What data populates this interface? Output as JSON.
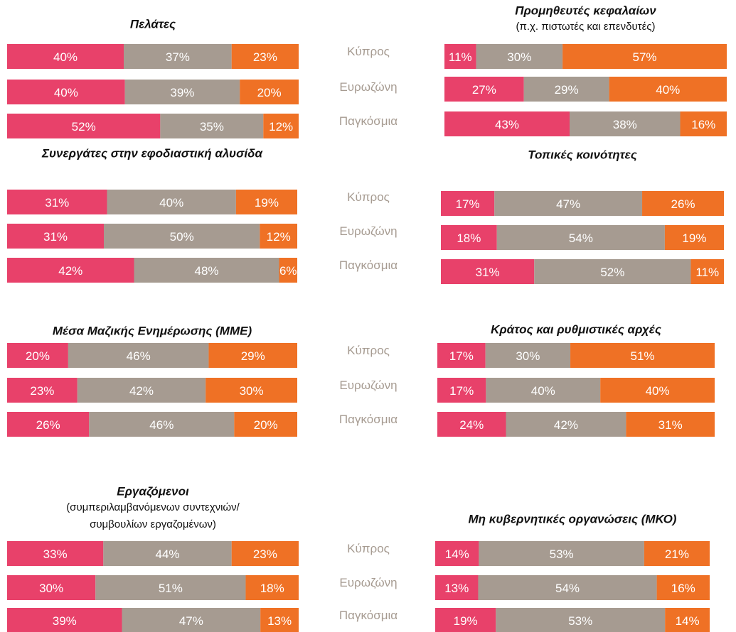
{
  "chart_data": [
    {
      "type": "stacked-bar",
      "title": "Πελάτες",
      "categories": [
        "Κύπρος",
        "Ευρωζώνη",
        "Παγκόσμια"
      ],
      "series": [
        {
          "color": "#e8416a",
          "values": [
            40,
            40,
            52
          ],
          "value_labels": [
            "40%",
            "40%",
            "52%"
          ]
        },
        {
          "color": "#a69b91",
          "values": [
            37,
            39,
            35
          ],
          "value_labels": [
            "37%",
            "39%",
            "35%"
          ]
        },
        {
          "color": "#ef7125",
          "values": [
            23,
            20,
            12
          ],
          "value_labels": [
            "23%",
            "20%",
            "12%"
          ]
        }
      ]
    },
    {
      "type": "stacked-bar",
      "title": "Προμηθευτές κεφαλαίων",
      "subtitle": [
        "(π.χ. πιστωτές και επενδυτές)"
      ],
      "series": [
        {
          "color": "#e8416a",
          "values": [
            11,
            27,
            43
          ],
          "value_labels": [
            "11%",
            "27%",
            "43%"
          ]
        },
        {
          "color": "#a69b91",
          "values": [
            30,
            29,
            38
          ],
          "value_labels": [
            "30%",
            "29%",
            "38%"
          ]
        },
        {
          "color": "#ef7125",
          "values": [
            57,
            40,
            16
          ],
          "value_labels": [
            "57%",
            "40%",
            "16%"
          ]
        }
      ]
    },
    {
      "type": "stacked-bar",
      "title": "Συνεργάτες στην εφοδιαστική αλυσίδα",
      "categories": [
        "Κύπρος",
        "Ευρωζώνη",
        "Παγκόσμια"
      ],
      "series": [
        {
          "color": "#e8416a",
          "values": [
            31,
            31,
            42
          ],
          "value_labels": [
            "31%",
            "31%",
            "42%"
          ]
        },
        {
          "color": "#a69b91",
          "values": [
            40,
            50,
            48
          ],
          "value_labels": [
            "40%",
            "50%",
            "48%"
          ]
        },
        {
          "color": "#ef7125",
          "values": [
            19,
            12,
            6
          ],
          "value_labels": [
            "19%",
            "12%",
            "6%"
          ]
        }
      ]
    },
    {
      "type": "stacked-bar",
      "title": "Τοπικές κοινότητες",
      "series": [
        {
          "color": "#e8416a",
          "values": [
            17,
            18,
            31
          ],
          "value_labels": [
            "17%",
            "18%",
            "31%"
          ]
        },
        {
          "color": "#a69b91",
          "values": [
            47,
            54,
            52
          ],
          "value_labels": [
            "47%",
            "54%",
            "52%"
          ]
        },
        {
          "color": "#ef7125",
          "values": [
            26,
            19,
            11
          ],
          "value_labels": [
            "26%",
            "19%",
            "11%"
          ]
        }
      ]
    },
    {
      "type": "stacked-bar",
      "title": "Μέσα Μαζικής Ενημέρωσης (ΜΜΕ)",
      "categories": [
        "Κύπρος",
        "Ευρωζώνη",
        "Παγκόσμια"
      ],
      "series": [
        {
          "color": "#e8416a",
          "values": [
            20,
            23,
            26
          ],
          "value_labels": [
            "20%",
            "23%",
            "26%"
          ]
        },
        {
          "color": "#a69b91",
          "values": [
            46,
            42,
            46
          ],
          "value_labels": [
            "46%",
            "42%",
            "46%"
          ]
        },
        {
          "color": "#ef7125",
          "values": [
            29,
            30,
            20
          ],
          "value_labels": [
            "29%",
            "30%",
            "20%"
          ]
        }
      ]
    },
    {
      "type": "stacked-bar",
      "title": "Κράτος και ρυθμιστικές αρχές",
      "series": [
        {
          "color": "#e8416a",
          "values": [
            17,
            17,
            24
          ],
          "value_labels": [
            "17%",
            "17%",
            "24%"
          ]
        },
        {
          "color": "#a69b91",
          "values": [
            30,
            40,
            42
          ],
          "value_labels": [
            "30%",
            "40%",
            "42%"
          ]
        },
        {
          "color": "#ef7125",
          "values": [
            51,
            40,
            31
          ],
          "value_labels": [
            "51%",
            "40%",
            "31%"
          ]
        }
      ]
    },
    {
      "type": "stacked-bar",
      "title": "Εργαζόμενοι",
      "subtitle": [
        "(συμπεριλαμβανόμενων συντεχνιών/",
        "συμβουλίων εργαζομένων)"
      ],
      "categories": [
        "Κύπρος",
        "Ευρωζώνη",
        "Παγκόσμια"
      ],
      "series": [
        {
          "color": "#e8416a",
          "values": [
            33,
            30,
            39
          ],
          "value_labels": [
            "33%",
            "30%",
            "39%"
          ]
        },
        {
          "color": "#a69b91",
          "values": [
            44,
            51,
            47
          ],
          "value_labels": [
            "44%",
            "51%",
            "47%"
          ]
        },
        {
          "color": "#ef7125",
          "values": [
            23,
            18,
            13
          ],
          "value_labels": [
            "23%",
            "18%",
            "13%"
          ]
        }
      ]
    },
    {
      "type": "stacked-bar",
      "title": "Μη κυβερνητικές οργανώσεις (ΜΚΟ)",
      "series": [
        {
          "color": "#e8416a",
          "values": [
            14,
            13,
            19
          ],
          "value_labels": [
            "14%",
            "13%",
            "19%"
          ]
        },
        {
          "color": "#a69b91",
          "values": [
            53,
            54,
            53
          ],
          "value_labels": [
            "53%",
            "54%",
            "53%"
          ]
        },
        {
          "color": "#ef7125",
          "values": [
            21,
            16,
            14
          ],
          "value_labels": [
            "21%",
            "16%",
            "14%"
          ]
        }
      ]
    }
  ]
}
